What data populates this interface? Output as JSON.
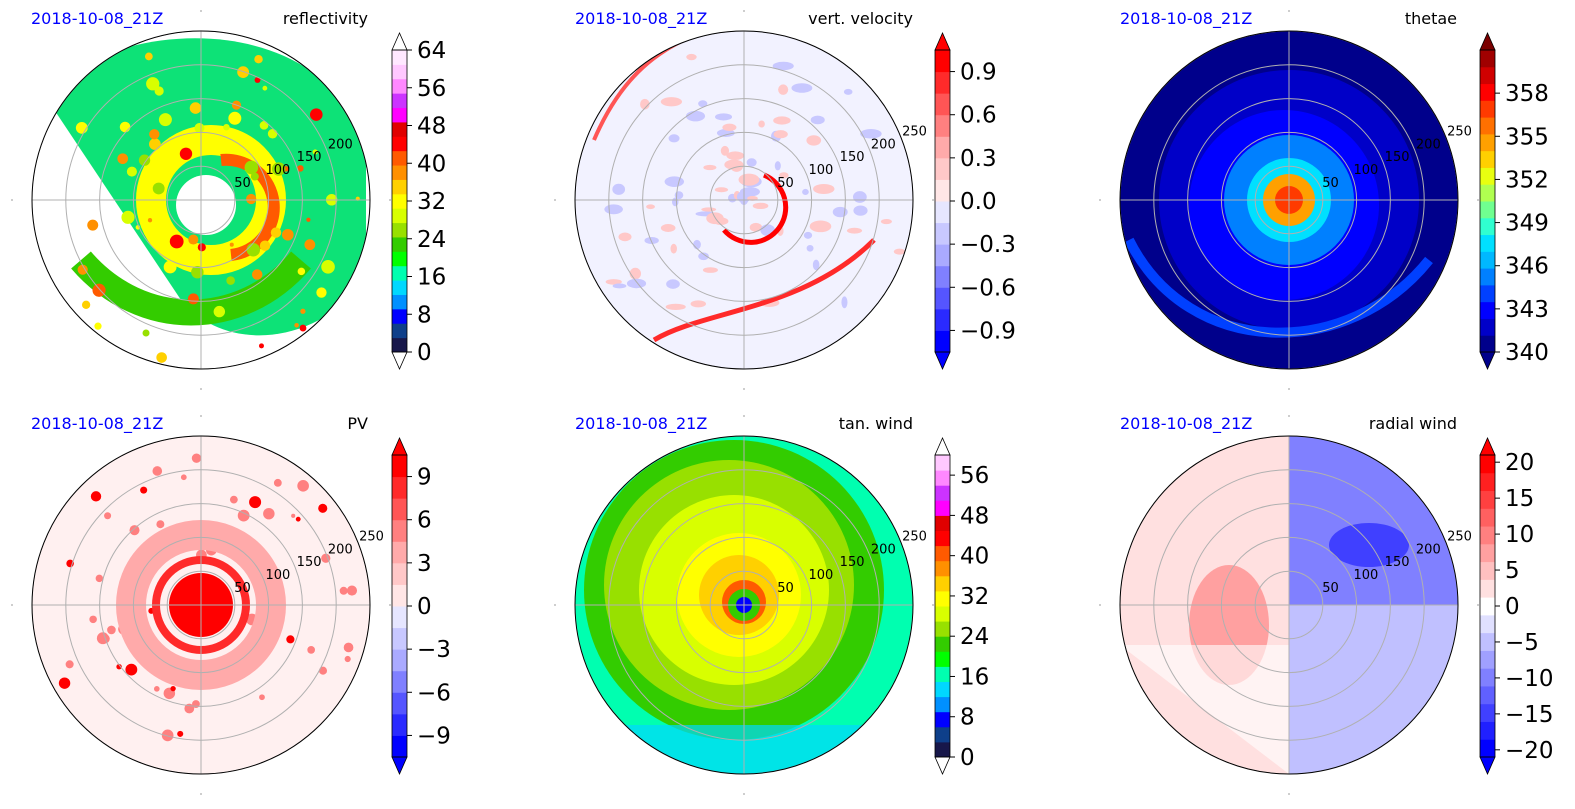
{
  "figure": {
    "panels": [
      {
        "id": "reflectivity",
        "timestamp": "2018-10-08_21Z",
        "title": "reflectivity",
        "radial_labels": [
          "50",
          "100",
          "150",
          "200"
        ],
        "colorbar": {
          "ticks": [
            "0",
            "8",
            "16",
            "24",
            "32",
            "40",
            "48",
            "56",
            "64"
          ],
          "colors": [
            "#17174a",
            "#0e3f8a",
            "#0000ff",
            "#0090ff",
            "#00d8ff",
            "#00ffb0",
            "#00ff00",
            "#33cc00",
            "#98e000",
            "#d8ff00",
            "#ffff00",
            "#ffd000",
            "#ff9000",
            "#ff5a00",
            "#ff0000",
            "#e00000",
            "#ff00ff",
            "#cc33ff",
            "#ff88ff",
            "#ffc8ff",
            "#ffe8ff"
          ],
          "extend": "both",
          "extend_colors": [
            "#ffffff",
            "#ffffff"
          ]
        }
      },
      {
        "id": "vert-velocity",
        "timestamp": "2018-10-08_21Z",
        "title": "vert. velocity",
        "radial_labels": [
          "50",
          "100",
          "150",
          "200",
          "250"
        ],
        "colorbar": {
          "ticks": [
            "−0.9",
            "−0.6",
            "−0.3",
            "0.0",
            "0.3",
            "0.6",
            "0.9"
          ],
          "colors": [
            "#0000ff",
            "#2a2aff",
            "#5555ff",
            "#8080ff",
            "#aaaaff",
            "#c8c8ff",
            "#e6e6ff",
            "#ffe6e6",
            "#ffc8c8",
            "#ffaaaa",
            "#ff8080",
            "#ff5555",
            "#ff2a2a",
            "#ff0000"
          ],
          "extend": "both",
          "extend_colors": [
            "#0000ff",
            "#ff0000"
          ]
        }
      },
      {
        "id": "thetae",
        "timestamp": "2018-10-08_21Z",
        "title": "thetae",
        "radial_labels": [
          "50",
          "100",
          "150",
          "200",
          "250"
        ],
        "colorbar": {
          "ticks": [
            "340",
            "343",
            "346",
            "349",
            "352",
            "355",
            "358"
          ],
          "colors": [
            "#00008b",
            "#0000c8",
            "#0000ff",
            "#0040ff",
            "#0080ff",
            "#00b8ff",
            "#00e0ff",
            "#30ffd0",
            "#70ff90",
            "#b0ff50",
            "#e8ff10",
            "#ffd000",
            "#ffa000",
            "#ff7000",
            "#ff3a00",
            "#ff0000",
            "#d00000",
            "#a00000"
          ],
          "extend": "both",
          "extend_colors": [
            "#00008b",
            "#7a0000"
          ]
        }
      },
      {
        "id": "pv",
        "timestamp": "2018-10-08_21Z",
        "title": "PV",
        "radial_labels": [
          "50",
          "100",
          "150",
          "200",
          "250"
        ],
        "colorbar": {
          "ticks": [
            "−9",
            "−6",
            "−3",
            "0",
            "3",
            "6",
            "9"
          ],
          "colors": [
            "#0000ff",
            "#2a2aff",
            "#5555ff",
            "#8080ff",
            "#aaaaff",
            "#c8c8ff",
            "#e6e6ff",
            "#ffe6e6",
            "#ffc8c8",
            "#ffaaaa",
            "#ff8080",
            "#ff5555",
            "#ff2a2a",
            "#ff0000"
          ],
          "extend": "both",
          "extend_colors": [
            "#0000ff",
            "#ff0000"
          ]
        }
      },
      {
        "id": "tan-wind",
        "timestamp": "2018-10-08_21Z",
        "title": "tan. wind",
        "radial_labels": [
          "50",
          "100",
          "150",
          "200",
          "250"
        ],
        "colorbar": {
          "ticks": [
            "0",
            "8",
            "16",
            "24",
            "32",
            "40",
            "48",
            "56"
          ],
          "colors": [
            "#17174a",
            "#0e3f8a",
            "#0000ff",
            "#0090ff",
            "#00d8ff",
            "#00ffb0",
            "#00ff00",
            "#33cc00",
            "#98e000",
            "#d8ff00",
            "#ffff00",
            "#ffd000",
            "#ff9000",
            "#ff5a00",
            "#ff0000",
            "#e00000",
            "#ff00ff",
            "#cc33ff",
            "#ff88ff",
            "#ffc8ff"
          ],
          "extend": "both",
          "extend_colors": [
            "#ffffff",
            "#ffffff"
          ]
        }
      },
      {
        "id": "radial-wind",
        "timestamp": "2018-10-08_21Z",
        "title": "radial wind",
        "radial_labels": [
          "50",
          "100",
          "150",
          "200",
          "250"
        ],
        "colorbar": {
          "ticks": [
            "−20",
            "−15",
            "−10",
            "−5",
            "0",
            "5",
            "10",
            "15",
            "20"
          ],
          "colors": [
            "#0000ff",
            "#2020ff",
            "#4040ff",
            "#6060ff",
            "#8080ff",
            "#a0a0ff",
            "#c0c0ff",
            "#e0e0ff",
            "#ffffff",
            "#ffe0e0",
            "#ffc0c0",
            "#ffa0a0",
            "#ff8080",
            "#ff6060",
            "#ff4040",
            "#ff2020",
            "#ff0000"
          ],
          "extend": "both",
          "extend_colors": [
            "#0000ff",
            "#ff0000"
          ]
        }
      }
    ]
  },
  "chart_data": [
    {
      "type": "heatmap",
      "projection": "polar",
      "title": "reflectivity",
      "timestamp": "2018-10-08_21Z",
      "radial_ticks": [
        50,
        100,
        150,
        200
      ],
      "colorbar_range": [
        0,
        64
      ],
      "colorbar_ticks": [
        0,
        8,
        16,
        24,
        32,
        40,
        48,
        56,
        64
      ],
      "extend": "both",
      "grid": true
    },
    {
      "type": "heatmap",
      "projection": "polar",
      "title": "vert. velocity",
      "timestamp": "2018-10-08_21Z",
      "radial_ticks": [
        50,
        100,
        150,
        200,
        250
      ],
      "colorbar_range": [
        -1.05,
        1.05
      ],
      "colorbar_ticks": [
        -0.9,
        -0.6,
        -0.3,
        0.0,
        0.3,
        0.6,
        0.9
      ],
      "extend": "both",
      "grid": true
    },
    {
      "type": "heatmap",
      "projection": "polar",
      "title": "thetae",
      "timestamp": "2018-10-08_21Z",
      "radial_ticks": [
        50,
        100,
        150,
        200,
        250
      ],
      "colorbar_range": [
        340,
        361
      ],
      "colorbar_ticks": [
        340,
        343,
        346,
        349,
        352,
        355,
        358
      ],
      "extend": "both",
      "grid": true
    },
    {
      "type": "heatmap",
      "projection": "polar",
      "title": "PV",
      "timestamp": "2018-10-08_21Z",
      "radial_ticks": [
        50,
        100,
        150,
        200,
        250
      ],
      "colorbar_range": [
        -10.5,
        10.5
      ],
      "colorbar_ticks": [
        -9,
        -6,
        -3,
        0,
        3,
        6,
        9
      ],
      "extend": "both",
      "grid": true
    },
    {
      "type": "heatmap",
      "projection": "polar",
      "title": "tan. wind",
      "timestamp": "2018-10-08_21Z",
      "radial_ticks": [
        50,
        100,
        150,
        200,
        250
      ],
      "colorbar_range": [
        0,
        60
      ],
      "colorbar_ticks": [
        0,
        8,
        16,
        24,
        32,
        40,
        48,
        56
      ],
      "extend": "both",
      "grid": true
    },
    {
      "type": "heatmap",
      "projection": "polar",
      "title": "radial wind",
      "timestamp": "2018-10-08_21Z",
      "radial_ticks": [
        50,
        100,
        150,
        200,
        250
      ],
      "colorbar_range": [
        -21,
        21
      ],
      "colorbar_ticks": [
        -20,
        -15,
        -10,
        -5,
        0,
        5,
        10,
        15,
        20
      ],
      "extend": "both",
      "grid": true
    }
  ]
}
